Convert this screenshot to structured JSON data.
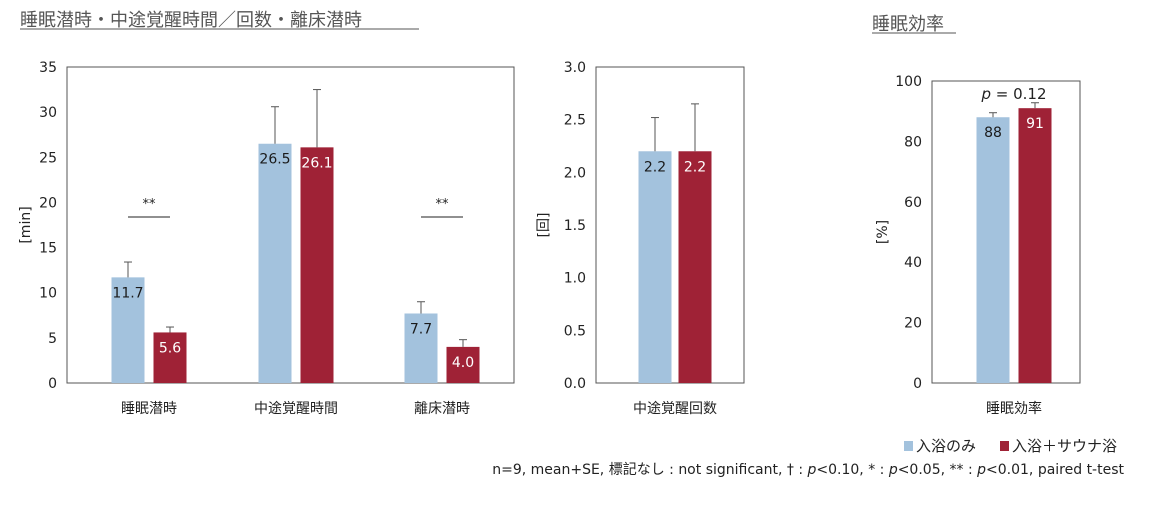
{
  "headings": {
    "left": "睡眠潜時・中途覚醒時間／回数・離床潜時",
    "right": "睡眠効率"
  },
  "legend": {
    "items": [
      {
        "label": "入浴のみ",
        "color": "#a3c2dd"
      },
      {
        "label": "入浴＋サウナ浴",
        "color": "#9f2236"
      }
    ]
  },
  "footnote": {
    "parts": [
      {
        "text": "n=9, mean+SE, 標記なし : not significant, † : ",
        "italic": false
      },
      {
        "text": "p",
        "italic": true
      },
      {
        "text": "<0.10, * : ",
        "italic": false
      },
      {
        "text": "p",
        "italic": true
      },
      {
        "text": "<0.05, ** : ",
        "italic": false
      },
      {
        "text": "p",
        "italic": true
      },
      {
        "text": "<0.01, paired t-test",
        "italic": false
      }
    ]
  },
  "chart_data": [
    {
      "type": "bar",
      "ylabel": "[min]",
      "ylim": [
        0,
        35
      ],
      "yticks": [
        "0",
        "5",
        "10",
        "15",
        "20",
        "25",
        "30",
        "35"
      ],
      "categories": [
        "睡眠潜時",
        "中途覚醒時間",
        "離床潜時"
      ],
      "series": [
        {
          "name": "入浴のみ",
          "values": [
            11.7,
            26.5,
            7.7
          ],
          "labels": [
            "11.7",
            "26.5",
            "7.7"
          ],
          "errors": [
            1.7,
            4.1,
            1.3
          ],
          "color": "#a3c2dd"
        },
        {
          "name": "入浴＋サウナ浴",
          "values": [
            5.6,
            26.1,
            4.0
          ],
          "labels": [
            "5.6",
            "26.1",
            "4.0"
          ],
          "errors": [
            0.6,
            6.4,
            0.8
          ],
          "color": "#9f2236"
        }
      ],
      "annotations": [
        {
          "category": 0,
          "text": "**",
          "y": 18.5
        },
        {
          "category": 2,
          "text": "**",
          "y": 18.5
        }
      ]
    },
    {
      "type": "bar",
      "ylabel": "[回]",
      "ylim": [
        0,
        3.0
      ],
      "yticks": [
        "0.0",
        "0.5",
        "1.0",
        "1.5",
        "2.0",
        "2.5",
        "3.0"
      ],
      "categories": [
        "中途覚醒回数"
      ],
      "series": [
        {
          "name": "入浴のみ",
          "values": [
            2.2
          ],
          "labels": [
            "2.2"
          ],
          "errors": [
            0.32
          ],
          "color": "#a3c2dd"
        },
        {
          "name": "入浴＋サウナ浴",
          "values": [
            2.2
          ],
          "labels": [
            "2.2"
          ],
          "errors": [
            0.45
          ],
          "color": "#9f2236"
        }
      ],
      "annotations": []
    },
    {
      "type": "bar",
      "ylabel": "[%]",
      "ylim": [
        0,
        100
      ],
      "yticks": [
        "0",
        "20",
        "40",
        "60",
        "80",
        "100"
      ],
      "categories": [
        "睡眠効率"
      ],
      "series": [
        {
          "name": "入浴のみ",
          "values": [
            88
          ],
          "labels": [
            "88"
          ],
          "errors": [
            1.5
          ],
          "color": "#a3c2dd"
        },
        {
          "name": "入浴＋サウナ浴",
          "values": [
            91
          ],
          "labels": [
            "91"
          ],
          "errors": [
            1.8
          ],
          "color": "#9f2236"
        }
      ],
      "annotations": [
        {
          "category": 0,
          "text_italic": "p",
          "text_rest": " = 0.12",
          "y": 96
        }
      ]
    }
  ]
}
